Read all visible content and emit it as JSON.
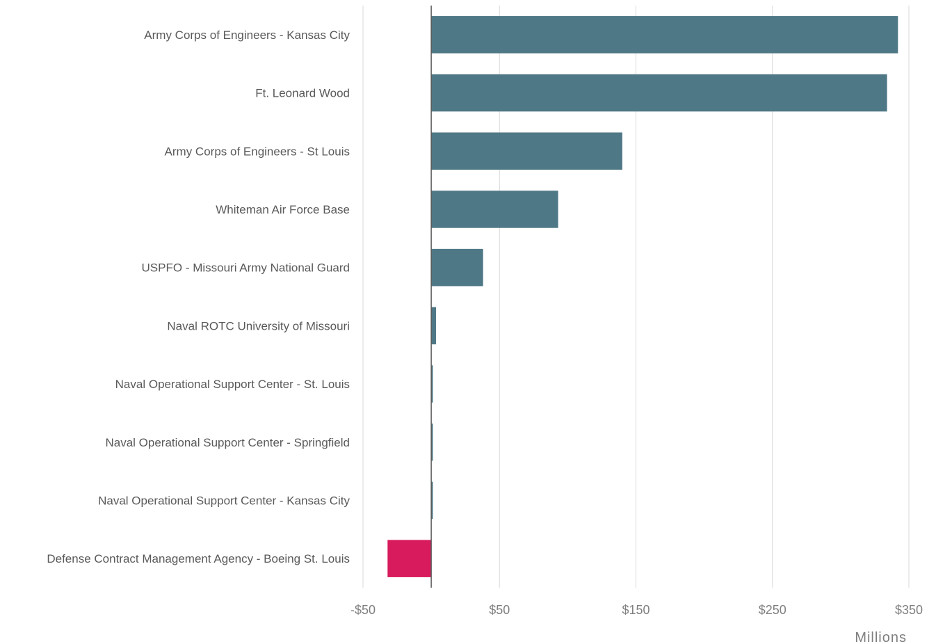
{
  "chart_data": {
    "type": "bar",
    "orientation": "horizontal",
    "categories": [
      "Army Corps of Engineers - Kansas City",
      "Ft. Leonard Wood",
      "Army Corps of Engineers - St Louis",
      "Whiteman Air Force Base",
      "USPFO - Missouri Army National Guard",
      "Naval ROTC University of Missouri",
      "Naval Operational Support Center - St. Louis",
      "Naval Operational Support Center - Springfield",
      "Naval Operational Support Center - Kansas City",
      "Defense Contract Management Agency - Boeing St. Louis"
    ],
    "values": [
      342,
      334,
      140,
      93,
      38,
      3.5,
      1.2,
      1.2,
      1.2,
      -32
    ],
    "xlim": [
      -50,
      350
    ],
    "xticks": [
      -50,
      50,
      150,
      250,
      350
    ],
    "xtick_labels": [
      "-$50",
      "$50",
      "$150",
      "$250",
      "$350"
    ],
    "unit_label": "Millions",
    "grid": true,
    "colors": {
      "positive": "#4f7886",
      "negative": "#d81b5c"
    }
  }
}
